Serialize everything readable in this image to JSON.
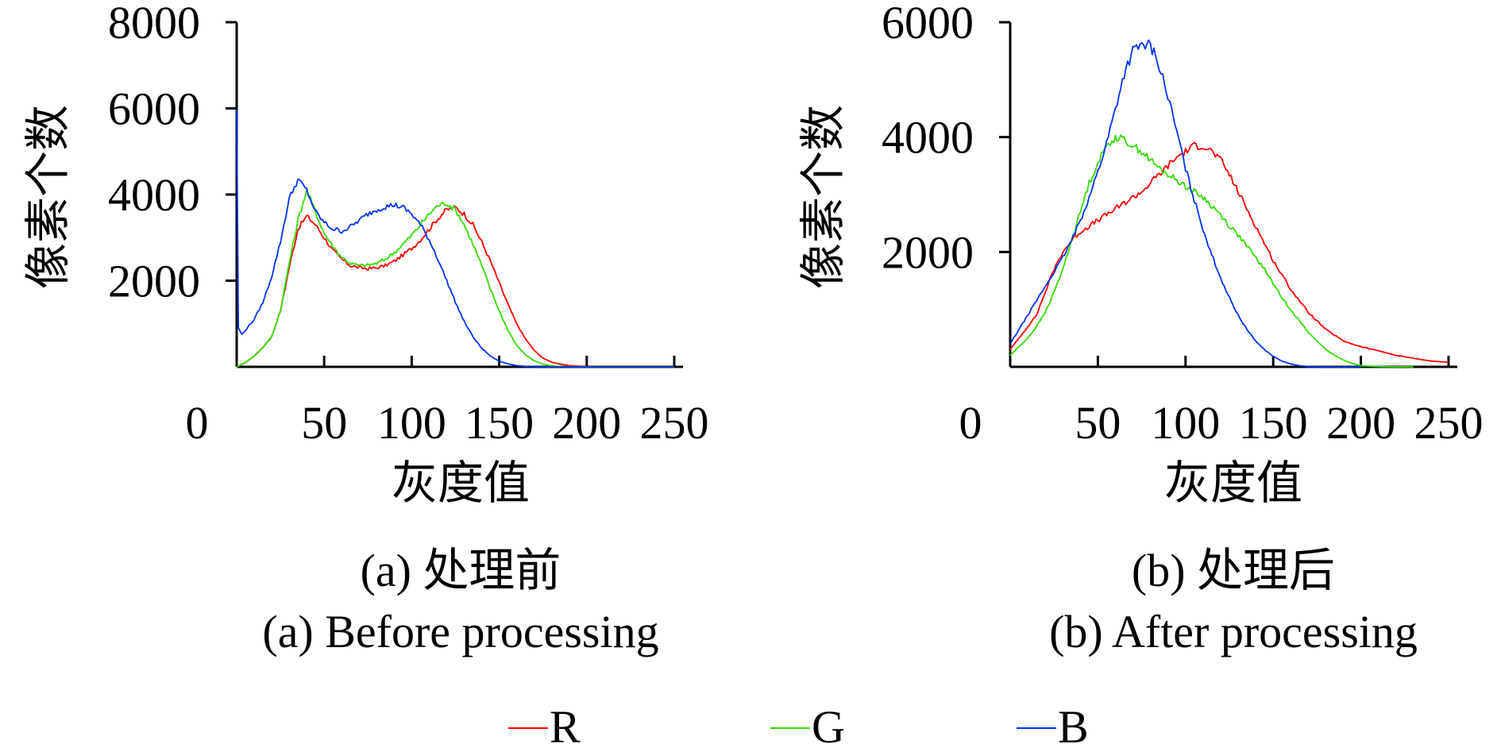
{
  "chart_data": [
    {
      "type": "line",
      "caption_cn": "(a) 处理前",
      "caption_en": "(a) Before processing",
      "xlabel": "灰度值",
      "ylabel": "像素个数",
      "xlim": [
        0,
        255
      ],
      "ylim": [
        0,
        8000
      ],
      "xticks": [
        0,
        50,
        100,
        150,
        200,
        250
      ],
      "yticks": [
        2000,
        4000,
        6000,
        8000
      ],
      "series": [
        {
          "name": "R",
          "color": "#ff0000",
          "x": [
            0,
            5,
            10,
            15,
            20,
            25,
            30,
            35,
            40,
            45,
            50,
            55,
            60,
            65,
            70,
            75,
            80,
            85,
            90,
            95,
            100,
            105,
            110,
            115,
            120,
            125,
            130,
            135,
            140,
            145,
            150,
            155,
            160,
            165,
            170,
            175,
            180,
            185,
            190,
            195,
            200,
            210,
            220,
            230,
            240,
            250
          ],
          "values": [
            0,
            100,
            250,
            450,
            700,
            1300,
            2300,
            3200,
            3500,
            3300,
            3000,
            2700,
            2500,
            2350,
            2300,
            2280,
            2300,
            2350,
            2450,
            2600,
            2750,
            2950,
            3200,
            3450,
            3650,
            3700,
            3550,
            3300,
            2900,
            2450,
            1950,
            1450,
            1000,
            650,
            380,
            200,
            110,
            60,
            30,
            15,
            5,
            0,
            0,
            0,
            0,
            0
          ]
        },
        {
          "name": "G",
          "color": "#33dd00",
          "x": [
            0,
            5,
            10,
            15,
            20,
            25,
            30,
            35,
            40,
            45,
            50,
            55,
            60,
            65,
            70,
            75,
            80,
            85,
            90,
            95,
            100,
            105,
            110,
            115,
            120,
            125,
            130,
            135,
            140,
            145,
            150,
            155,
            160,
            165,
            170,
            175,
            180,
            185,
            190,
            195,
            200,
            210,
            220,
            230,
            240,
            250
          ],
          "values": [
            0,
            100,
            250,
            450,
            700,
            1300,
            2400,
            3400,
            4100,
            3600,
            3100,
            2800,
            2550,
            2400,
            2350,
            2360,
            2400,
            2500,
            2650,
            2850,
            3050,
            3300,
            3550,
            3750,
            3800,
            3650,
            3300,
            2850,
            2350,
            1800,
            1300,
            850,
            500,
            280,
            140,
            60,
            25,
            10,
            5,
            0,
            0,
            0,
            0,
            0,
            0,
            0
          ]
        },
        {
          "name": "B",
          "color": "#0033ee",
          "x": [
            0,
            1,
            3,
            5,
            10,
            15,
            20,
            25,
            30,
            35,
            40,
            45,
            50,
            55,
            60,
            65,
            70,
            75,
            80,
            85,
            90,
            95,
            100,
            105,
            110,
            115,
            120,
            125,
            130,
            135,
            140,
            145,
            150,
            155,
            160,
            165,
            170,
            175,
            180,
            190,
            200,
            220,
            250
          ],
          "values": [
            6000,
            900,
            750,
            850,
            1100,
            1500,
            2100,
            2900,
            3900,
            4350,
            4100,
            3600,
            3350,
            3200,
            3150,
            3250,
            3400,
            3550,
            3650,
            3720,
            3760,
            3700,
            3550,
            3300,
            2950,
            2500,
            2000,
            1500,
            1050,
            700,
            430,
            250,
            130,
            70,
            30,
            10,
            5,
            0,
            0,
            0,
            0,
            0,
            0
          ]
        }
      ]
    },
    {
      "type": "line",
      "caption_cn": "(b) 处理后",
      "caption_en": "(b) After processing",
      "xlabel": "灰度值",
      "ylabel": "像素个数",
      "xlim": [
        0,
        255
      ],
      "ylim": [
        0,
        6000
      ],
      "xticks": [
        0,
        50,
        100,
        150,
        200,
        250
      ],
      "yticks": [
        2000,
        4000,
        6000
      ],
      "series": [
        {
          "name": "R",
          "color": "#ff0000",
          "x": [
            0,
            5,
            10,
            15,
            20,
            25,
            30,
            35,
            40,
            45,
            50,
            55,
            60,
            65,
            70,
            75,
            80,
            85,
            90,
            95,
            100,
            105,
            110,
            115,
            120,
            125,
            130,
            135,
            140,
            145,
            150,
            155,
            160,
            165,
            170,
            175,
            180,
            185,
            190,
            200,
            210,
            220,
            230,
            240,
            250
          ],
          "values": [
            300,
            500,
            700,
            900,
            1300,
            1700,
            2000,
            2200,
            2350,
            2450,
            2550,
            2650,
            2750,
            2850,
            2950,
            3050,
            3200,
            3350,
            3500,
            3650,
            3750,
            3850,
            3850,
            3750,
            3600,
            3350,
            3050,
            2750,
            2450,
            2150,
            1850,
            1600,
            1350,
            1150,
            950,
            800,
            650,
            550,
            450,
            350,
            280,
            200,
            150,
            100,
            80
          ]
        },
        {
          "name": "G",
          "color": "#33dd00",
          "x": [
            0,
            5,
            10,
            15,
            20,
            25,
            30,
            35,
            40,
            45,
            50,
            55,
            60,
            65,
            70,
            75,
            80,
            85,
            90,
            95,
            100,
            105,
            110,
            115,
            120,
            125,
            130,
            135,
            140,
            145,
            150,
            155,
            160,
            165,
            170,
            175,
            180,
            185,
            190,
            195,
            200,
            210,
            220,
            230
          ],
          "values": [
            200,
            350,
            500,
            700,
            950,
            1300,
            1700,
            2200,
            2700,
            3200,
            3550,
            3850,
            4000,
            3950,
            3850,
            3750,
            3600,
            3450,
            3350,
            3250,
            3150,
            3050,
            2950,
            2800,
            2650,
            2450,
            2300,
            2100,
            1900,
            1700,
            1450,
            1200,
            1000,
            800,
            600,
            450,
            300,
            200,
            120,
            60,
            20,
            5,
            0,
            0
          ]
        },
        {
          "name": "B",
          "color": "#0033ee",
          "x": [
            0,
            5,
            10,
            15,
            20,
            25,
            30,
            35,
            40,
            45,
            50,
            55,
            60,
            65,
            70,
            75,
            80,
            85,
            90,
            95,
            100,
            105,
            110,
            115,
            120,
            125,
            130,
            135,
            140,
            145,
            150,
            155,
            160,
            165,
            170,
            180,
            190,
            200
          ],
          "values": [
            400,
            650,
            900,
            1150,
            1400,
            1650,
            1900,
            2200,
            2550,
            2950,
            3400,
            3900,
            4500,
            5100,
            5500,
            5600,
            5600,
            5250,
            4700,
            4100,
            3450,
            2900,
            2400,
            1950,
            1550,
            1200,
            900,
            650,
            450,
            300,
            180,
            100,
            50,
            20,
            5,
            0,
            0,
            0
          ]
        }
      ]
    }
  ],
  "legend": [
    {
      "label": "R",
      "color": "#ff0000"
    },
    {
      "label": "G",
      "color": "#33dd00"
    },
    {
      "label": "B",
      "color": "#0033ee"
    }
  ]
}
